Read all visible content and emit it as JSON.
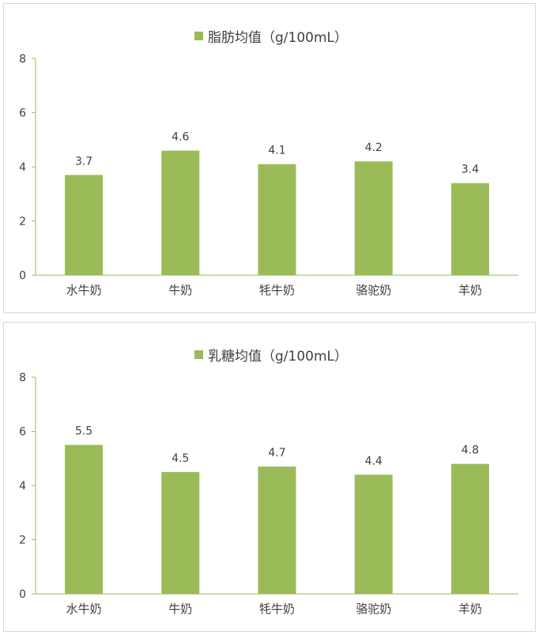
{
  "colors": {
    "bar": "#9bbb59",
    "axis": "#9bbb59",
    "text": "#404040",
    "border": "#d9d9d9"
  },
  "chart_data": [
    {
      "type": "bar",
      "title": "脂肪均值（g/100mL）",
      "categories": [
        "水牛奶",
        "牛奶",
        "牦牛奶",
        "骆驼奶",
        "羊奶"
      ],
      "series": [
        {
          "name": "脂肪均值（g/100mL）",
          "values": [
            3.7,
            4.6,
            4.1,
            4.2,
            3.4
          ]
        }
      ],
      "data_labels": [
        "3.7",
        "4.6",
        "4.1",
        "4.2",
        "3.4"
      ],
      "ylim": [
        0,
        8
      ],
      "yticks": [
        0,
        2,
        4,
        6,
        8
      ],
      "legend": "top",
      "grid": false
    },
    {
      "type": "bar",
      "title": "乳糖均值（g/100mL）",
      "categories": [
        "水牛奶",
        "牛奶",
        "牦牛奶",
        "骆驼奶",
        "羊奶"
      ],
      "series": [
        {
          "name": "乳糖均值（g/100mL）",
          "values": [
            5.5,
            4.5,
            4.7,
            4.4,
            4.8
          ]
        }
      ],
      "data_labels": [
        "5.5",
        "4.5",
        "4.7",
        "4.4",
        "4.8"
      ],
      "ylim": [
        0,
        8
      ],
      "yticks": [
        0,
        2,
        4,
        6,
        8
      ],
      "legend": "top",
      "grid": false
    }
  ]
}
